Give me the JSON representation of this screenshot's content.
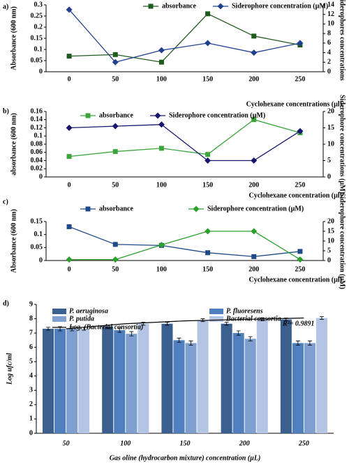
{
  "chart_data": [
    {
      "type": "line",
      "panel_label": "a)",
      "y_label": "Absorbance (600 nm)",
      "y2_label": "Siderophores concentrations",
      "x_label": "Cyclohexane concentrations (µl)",
      "categories": [
        "0",
        "50",
        "100",
        "150",
        "200",
        "250"
      ],
      "ylim": [
        0,
        0.3
      ],
      "yticks": [
        0,
        0.05,
        0.1,
        0.15,
        0.2,
        0.25,
        0.3
      ],
      "y2lim": [
        0,
        14
      ],
      "y2ticks": [
        0,
        2,
        4,
        6,
        8,
        10,
        12,
        14
      ],
      "series": [
        {
          "name": "absorbance",
          "color": "#1e5a1e",
          "marker": "square",
          "values": [
            0.07,
            0.077,
            0.043,
            0.26,
            0.16,
            0.12
          ]
        },
        {
          "name": "Siderophore concentration  (µM)",
          "color": "#1f3f8f",
          "marker": "diamond",
          "axis": "y2",
          "values": [
            13,
            2,
            4.5,
            6,
            4,
            6
          ]
        }
      ]
    },
    {
      "type": "line",
      "panel_label": "b)",
      "y_label": "absorbance (600 nm)",
      "y2_label": "Siderophore concentrations (µM)",
      "x_label": "Cyclohexane concentration (µl)",
      "categories": [
        "0",
        "50",
        "100",
        "150",
        "200",
        "250"
      ],
      "ylim": [
        0,
        0.16
      ],
      "yticks": [
        0,
        0.02,
        0.04,
        0.06,
        0.08,
        0.1,
        0.12,
        0.14,
        0.16
      ],
      "y2lim": [
        0,
        20
      ],
      "y2ticks": [
        0,
        5,
        10,
        15,
        20
      ],
      "series": [
        {
          "name": "absorbance",
          "color": "#3aa53a",
          "marker": "square",
          "values": [
            0.05,
            0.062,
            0.07,
            0.055,
            0.14,
            0.108
          ]
        },
        {
          "name": "Siderophore concentration  (µM)",
          "color": "#16166e",
          "marker": "diamond",
          "axis": "y2",
          "values": [
            15,
            15.5,
            16,
            5,
            5,
            14
          ]
        }
      ]
    },
    {
      "type": "line",
      "panel_label": "c)",
      "y_label": "Absorbance (600 nm)",
      "y2_label": "Siderophore concentration (µM)",
      "x_label": "Cyclohexane concentration (µl)",
      "categories": [
        "0",
        "50",
        "100",
        "150",
        "200",
        "250"
      ],
      "ylim": [
        0,
        0.15
      ],
      "yticks": [
        0,
        0.05,
        0.1,
        0.15
      ],
      "y2lim": [
        0,
        20
      ],
      "y2ticks": [
        0,
        5,
        10,
        15,
        20
      ],
      "series": [
        {
          "name": "absorbance",
          "color": "#1f4a8a",
          "marker": "square",
          "values": [
            0.13,
            0.062,
            0.058,
            0.03,
            0.015,
            0.035
          ]
        },
        {
          "name": "Siderophore concentration (µM)",
          "color": "#2ca02c",
          "marker": "diamond",
          "axis": "y2",
          "values": [
            0.5,
            0.5,
            8,
            15,
            15,
            0.5
          ]
        }
      ]
    },
    {
      "type": "bar",
      "panel_label": "d)",
      "y_label": "Log ufc/ml",
      "x_label": "Gas oline (hydrocarbon mixture) concentration (µL)",
      "categories": [
        "50",
        "100",
        "150",
        "200",
        "250"
      ],
      "ylim": [
        0,
        9
      ],
      "yticks": [
        0,
        1,
        2,
        3,
        4,
        5,
        6,
        7,
        8,
        9
      ],
      "series": [
        {
          "name": "P. aeruginosa",
          "color": "#3b5f8f",
          "values": [
            7.3,
            7.45,
            7.65,
            7.65,
            7.95
          ],
          "errors": [
            0.1,
            0.1,
            0.1,
            0.1,
            0.1
          ]
        },
        {
          "name": "P. fluoresens",
          "color": "#4f7fbf",
          "values": [
            7.3,
            7.2,
            6.5,
            7.0,
            6.3
          ],
          "errors": [
            0.15,
            0.15,
            0.15,
            0.15,
            0.15
          ]
        },
        {
          "name": "P. putida",
          "color": "#7f9fd0",
          "values": [
            7.3,
            6.95,
            6.3,
            6.6,
            6.3
          ],
          "errors": [
            0.15,
            0.15,
            0.15,
            0.15,
            0.15
          ]
        },
        {
          "name": "Bacterial consortia",
          "color": "#b4c4e4",
          "values": [
            7.3,
            7.65,
            7.9,
            7.95,
            8.05
          ],
          "errors": [
            0.1,
            0.1,
            0.1,
            0.1,
            0.1
          ]
        }
      ],
      "trendline": {
        "name": "Log. (Bacterial consortia)",
        "color": "#000000",
        "values": [
          7.3,
          7.65,
          7.85,
          7.95,
          8.05
        ]
      },
      "annotation": "R²= 0.9891"
    }
  ]
}
